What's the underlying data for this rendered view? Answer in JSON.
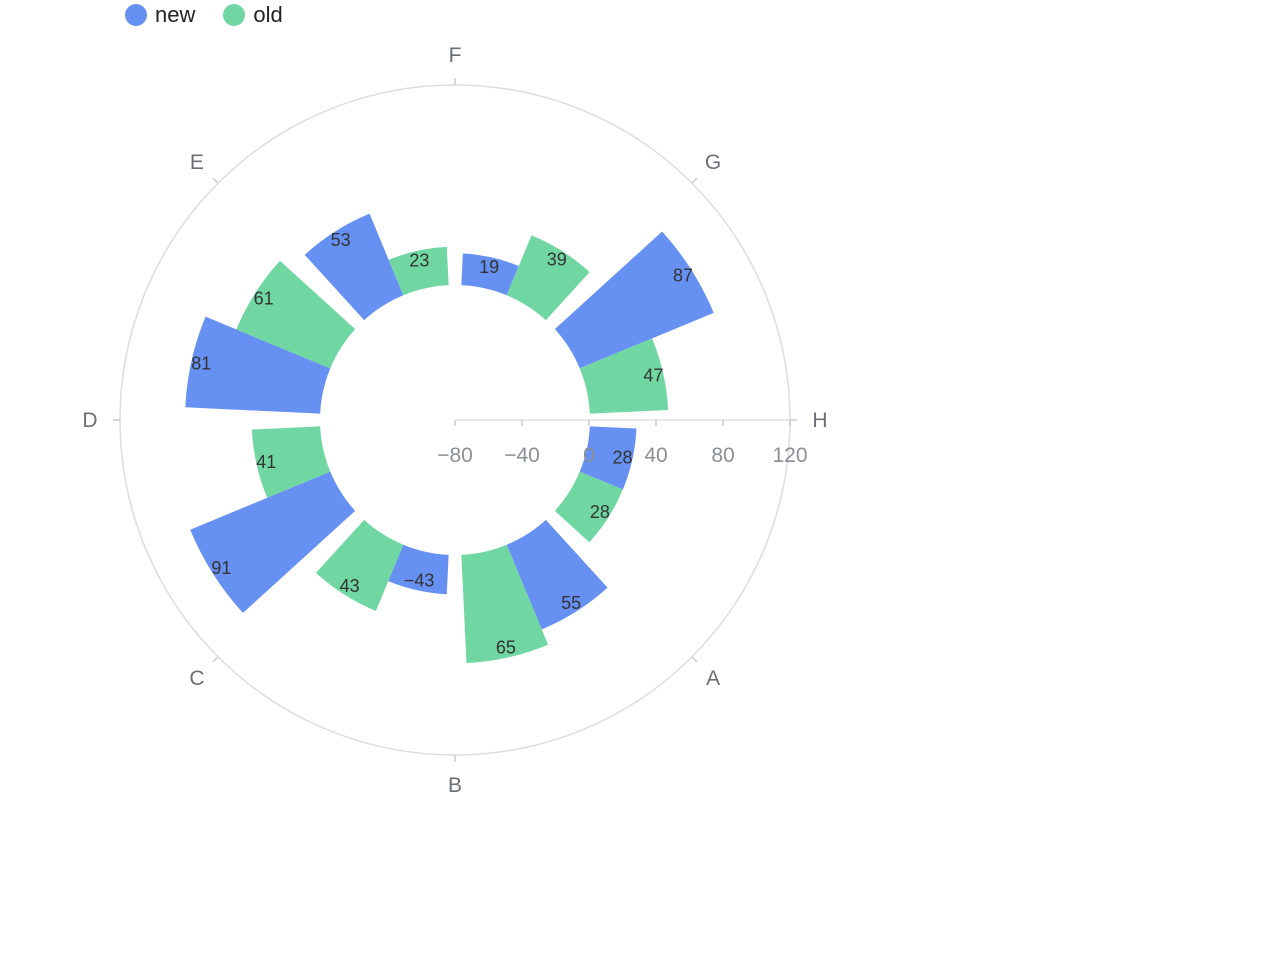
{
  "legend": [
    {
      "name": "new",
      "color": "#6691F2"
    },
    {
      "name": "old",
      "color": "#70D7A2"
    }
  ],
  "chart_data": {
    "type": "bar",
    "coordinate": "polar",
    "categories": [
      "A",
      "B",
      "C",
      "D",
      "E",
      "F",
      "G",
      "H"
    ],
    "series": [
      {
        "name": "new",
        "color": "#6691F2",
        "values": [
          28,
          55,
          -43,
          91,
          81,
          53,
          19,
          87
        ]
      },
      {
        "name": "old",
        "color": "#70D7A2",
        "values": [
          28,
          65,
          43,
          41,
          61,
          23,
          39,
          47
        ]
      }
    ],
    "radius_axis": {
      "min": -80,
      "max": 120,
      "ticks": [
        "-80",
        "-40",
        "0",
        "40",
        "80",
        "120"
      ]
    },
    "legend_position": "top-left",
    "grid": false
  }
}
